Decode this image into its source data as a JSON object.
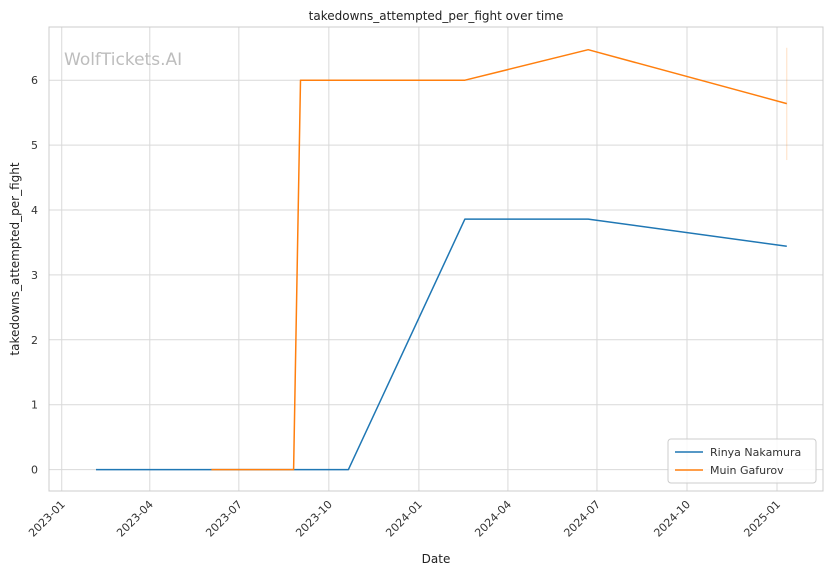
{
  "chart_data": {
    "type": "line",
    "title": "takedowns_attempted_per_fight over time",
    "xlabel": "Date",
    "ylabel": "takedowns_attempted_per_fight",
    "watermark": "WolfTickets.AI",
    "x_ticks": [
      "2023-01",
      "2023-04",
      "2023-07",
      "2023-10",
      "2024-01",
      "2024-04",
      "2024-07",
      "2024-10",
      "2025-01"
    ],
    "y_ticks": [
      "0",
      "1",
      "2",
      "3",
      "4",
      "5",
      "6"
    ],
    "xlim": [
      "2022-12-19",
      "2025-02-17"
    ],
    "ylim": [
      -0.33,
      6.82
    ],
    "grid": true,
    "legend_position": "bottom-right",
    "series": [
      {
        "name": "Rinya Nakamura",
        "color": "#1f77b4",
        "points": [
          {
            "x": "2023-02-05",
            "y": 0
          },
          {
            "x": "2023-10-21",
            "y": 0
          },
          {
            "x": "2024-02-17",
            "y": 3.86
          },
          {
            "x": "2024-06-22",
            "y": 3.86
          },
          {
            "x": "2025-01-11",
            "y": 3.44
          }
        ]
      },
      {
        "name": "Muin Gafurov",
        "color": "#ff7f0e",
        "points": [
          {
            "x": "2023-06-03",
            "y": 0
          },
          {
            "x": "2023-08-26",
            "y": 0
          },
          {
            "x": "2023-09-02",
            "y": 6.0
          },
          {
            "x": "2024-02-17",
            "y": 6.0
          },
          {
            "x": "2024-06-22",
            "y": 6.47
          },
          {
            "x": "2025-01-11",
            "y": 5.64
          }
        ]
      }
    ],
    "faint_marks": [
      {
        "x": "2025-01-11",
        "y_low": 4.77,
        "y_high": 6.5,
        "color": "#ff7f0e"
      }
    ]
  }
}
